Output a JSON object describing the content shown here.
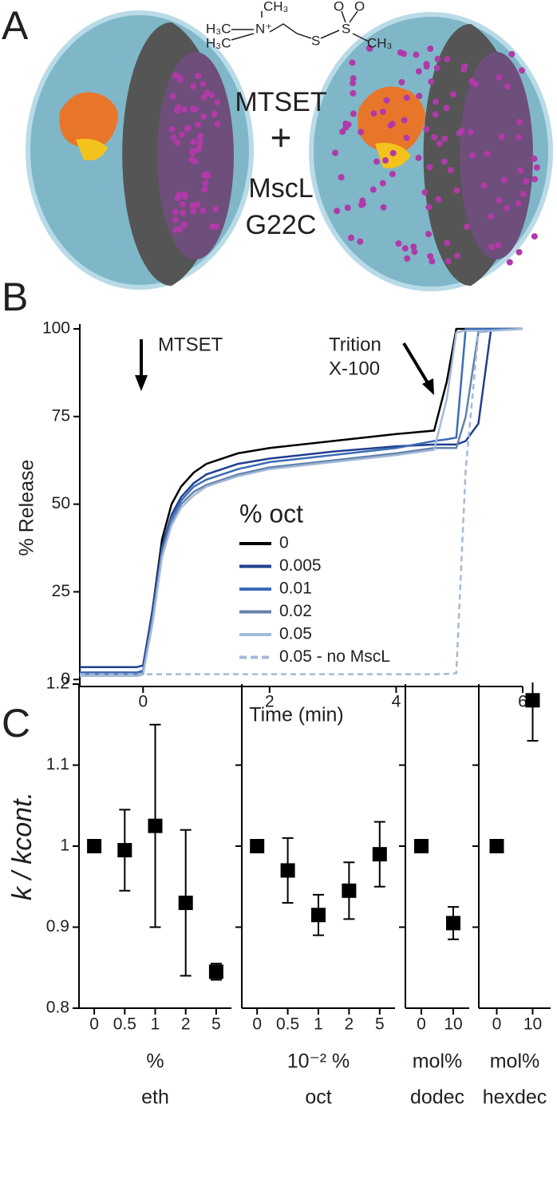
{
  "figure": {
    "panel_labels": [
      "A",
      "B",
      "C"
    ]
  },
  "panel_a": {
    "reagent": "MTSET",
    "plus": "+",
    "protein": [
      "MscL",
      "G22C"
    ],
    "structure": [
      "CH₃",
      "H₃C",
      "N⁺",
      "H₃C",
      "S",
      "S",
      "O",
      "O",
      "CH₃"
    ]
  },
  "chart_data": [
    {
      "type": "line",
      "xlabel": "Time (min)",
      "ylabel": "% Release",
      "xlim": [
        -1,
        6
      ],
      "xticks": [
        0,
        2,
        4,
        6
      ],
      "ylim": [
        -2,
        100
      ],
      "yticks": [
        0,
        25,
        50,
        75,
        100
      ],
      "annotations": [
        "MTSET",
        "Trition",
        "X-100"
      ],
      "legend_title": "% oct",
      "x": [
        -1,
        -0.1,
        0,
        0.15,
        0.3,
        0.45,
        0.6,
        0.8,
        1,
        1.5,
        2,
        3,
        4,
        4.6,
        4.8,
        4.95,
        5.1,
        5.3,
        5.5,
        6
      ],
      "series": [
        {
          "name": "0",
          "color": "#000000",
          "dashed": false,
          "values": [
            1,
            1,
            1.5,
            20,
            40,
            50,
            55,
            59,
            61.5,
            64.5,
            66,
            68,
            70,
            71,
            85,
            100,
            100,
            100,
            100,
            100
          ]
        },
        {
          "name": "0.005",
          "color": "#1f3f8f",
          "dashed": false,
          "values": [
            3.5,
            3.5,
            4,
            20,
            38,
            47,
            52,
            56,
            58.5,
            61.5,
            63,
            65,
            66.5,
            67,
            67,
            67,
            68,
            73,
            100,
            100
          ]
        },
        {
          "name": "0.01",
          "color": "#3b6cb7",
          "dashed": false,
          "values": [
            2,
            2,
            2.5,
            18,
            37,
            46,
            51,
            55,
            57,
            60,
            62,
            64,
            66,
            68,
            68.5,
            69,
            100,
            100,
            100,
            100
          ]
        },
        {
          "name": "0.02",
          "color": "#6482ab",
          "dashed": false,
          "values": [
            1.5,
            1.5,
            2,
            17,
            36,
            45,
            50,
            53.5,
            55.5,
            58.5,
            60.5,
            62.5,
            64.5,
            66,
            66,
            66,
            75,
            99,
            99.5,
            100
          ]
        },
        {
          "name": "0.05",
          "color": "#a3b9d8",
          "dashed": false,
          "values": [
            1,
            1,
            1.5,
            16,
            35,
            44,
            49,
            52.5,
            55,
            58,
            60,
            62,
            64,
            65.5,
            80,
            99,
            99.5,
            99.5,
            99.5,
            100
          ]
        },
        {
          "name": "0.05 - no MscL",
          "color": "#a3b9d8",
          "dashed": true,
          "values": [
            1.5,
            1.5,
            1.5,
            1.5,
            1.5,
            1.5,
            1.5,
            1.5,
            1.5,
            1.5,
            1.5,
            1.5,
            1.5,
            1.5,
            1.6,
            1.8,
            60,
            99,
            99.5,
            100
          ]
        }
      ]
    },
    {
      "type": "scatter",
      "ylabel": "k / kcont.",
      "xlabel": [
        "%",
        "eth"
      ],
      "ylim": [
        0.8,
        1.2
      ],
      "yticks": [
        0.8,
        0.9,
        1,
        1.1,
        1.2
      ],
      "color": "#000000",
      "categories": [
        "0",
        "0.5",
        "1",
        "2",
        "5"
      ],
      "values": [
        1,
        0.995,
        1.025,
        0.93,
        0.845
      ],
      "errors": [
        0,
        0.05,
        0.125,
        0.09,
        0.01
      ]
    },
    {
      "type": "scatter",
      "xlabel": [
        "10⁻² %",
        "oct"
      ],
      "ylim": [
        0.8,
        1.2
      ],
      "yticks": [
        0.9,
        1,
        1.1
      ],
      "color": "#000000",
      "categories": [
        "0",
        "0.5",
        "1",
        "2",
        "5"
      ],
      "values": [
        1,
        0.97,
        0.915,
        0.945,
        0.99
      ],
      "errors": [
        0,
        0.04,
        0.025,
        0.035,
        0.04
      ]
    },
    {
      "type": "scatter",
      "xlabel": [
        "mol%",
        "dodec"
      ],
      "ylim": [
        0.8,
        1.2
      ],
      "yticks": [
        0.9,
        1,
        1.1
      ],
      "color": "#000000",
      "categories": [
        "0",
        "10"
      ],
      "values": [
        1,
        0.905
      ],
      "errors": [
        0,
        0.02
      ]
    },
    {
      "type": "scatter",
      "xlabel": [
        "mol%",
        "hexdec"
      ],
      "ylim": [
        0.8,
        1.2
      ],
      "yticks": [
        0.9,
        1,
        1.1
      ],
      "color": "#000000",
      "categories": [
        "0",
        "10"
      ],
      "values": [
        1,
        1.18
      ],
      "errors": [
        0,
        0.05
      ]
    }
  ]
}
